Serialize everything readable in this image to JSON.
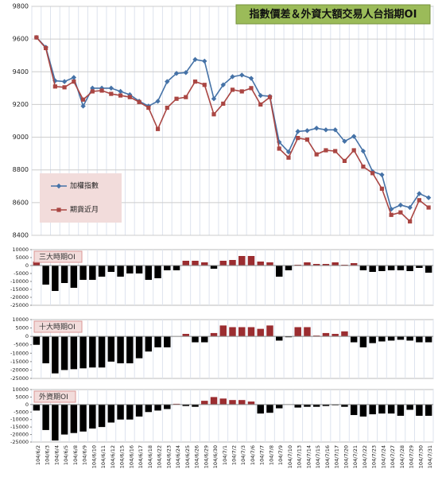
{
  "chart_data": [
    {
      "type": "line",
      "title": "指數價差＆外資大額交易人台指期OI",
      "ylim": [
        8400,
        9800
      ],
      "yticks": [
        8400,
        8600,
        8800,
        9000,
        9200,
        9400,
        9600,
        9800
      ],
      "grid": true,
      "legend": "lower left",
      "series": [
        {
          "name": "加權指數",
          "color": "#4572a7",
          "marker": "diamond",
          "values": [
            9610,
            9550,
            9345,
            9340,
            9365,
            9190,
            9300,
            9300,
            9300,
            9280,
            9260,
            9220,
            9190,
            9220,
            9340,
            9390,
            9395,
            9475,
            9465,
            9235,
            9320,
            9370,
            9380,
            9360,
            9255,
            9250,
            8970,
            8910,
            9035,
            9040,
            9055,
            9045,
            9045,
            8975,
            9005,
            8915,
            8790,
            8770,
            8560,
            8585,
            8570,
            8655,
            8630
          ]
        },
        {
          "name": "期貨近月",
          "color": "#aa4643",
          "marker": "square",
          "values": [
            9610,
            9545,
            9310,
            9305,
            9340,
            9230,
            9280,
            9285,
            9265,
            9255,
            9245,
            9215,
            9180,
            9050,
            9180,
            9235,
            9245,
            9340,
            9320,
            9140,
            9205,
            9290,
            9280,
            9300,
            9200,
            9245,
            8930,
            8875,
            8995,
            8985,
            8895,
            8920,
            8915,
            8855,
            8920,
            8820,
            8780,
            8685,
            8525,
            8540,
            8485,
            8615,
            8570
          ]
        }
      ]
    },
    {
      "type": "bar",
      "title": "三大時期OI",
      "ylim": [
        -25000,
        10000
      ],
      "yticks": [
        10000,
        5000,
        0,
        -5000,
        -10000,
        -15000,
        -20000,
        -25000
      ],
      "color": "#9b2d30",
      "negative_color": "#000000",
      "values": [
        2500,
        -12000,
        -16000,
        -11000,
        -14000,
        -9000,
        -9000,
        -7000,
        -4000,
        -7000,
        -5000,
        -5000,
        -9000,
        -8000,
        -3000,
        -3000,
        3000,
        3000,
        2000,
        -2000,
        3000,
        3500,
        6000,
        6000,
        2500,
        2000,
        -7000,
        -3000,
        500,
        2000,
        1000,
        1000,
        2000,
        500,
        1500,
        -3000,
        -4000,
        -3500,
        -3000,
        -3000,
        -3500,
        -1500,
        -4500
      ]
    },
    {
      "type": "bar",
      "title": "十大時期OI",
      "ylim": [
        -25000,
        10000
      ],
      "yticks": [
        10000,
        5000,
        0,
        -5000,
        -10000,
        -15000,
        -20000,
        -25000
      ],
      "color": "#9b2d30",
      "negative_color": "#000000",
      "values": [
        -5000,
        -16000,
        -22000,
        -20000,
        -19500,
        -19000,
        -18500,
        -18500,
        -15000,
        -16000,
        -16000,
        -13000,
        -9000,
        -6500,
        -6500,
        0,
        1500,
        -3500,
        -3500,
        2000,
        6500,
        5500,
        5500,
        5500,
        4500,
        6500,
        -2500,
        -500,
        5500,
        5500,
        500,
        2000,
        1500,
        3000,
        -3500,
        -6500,
        -4000,
        -3000,
        -2500,
        -2000,
        -2500,
        -3500,
        -3500
      ]
    },
    {
      "type": "bar",
      "title": "外資期OI",
      "ylim": [
        -25000,
        10000
      ],
      "yticks": [
        10000,
        5000,
        0,
        -5000,
        -10000,
        -15000,
        -20000,
        -25000
      ],
      "color": "#9b2d30",
      "negative_color": "#000000",
      "categories": [
        "104/6/2",
        "104/6/3",
        "104/6/4",
        "104/6/5",
        "104/6/8",
        "104/6/9",
        "104/6/10",
        "104/6/11",
        "104/6/12",
        "104/6/15",
        "104/6/16",
        "104/6/17",
        "104/6/18",
        "104/6/22",
        "104/6/23",
        "104/6/24",
        "104/6/25",
        "104/6/26",
        "104/6/29",
        "104/6/30",
        "104/7/1",
        "104/7/2",
        "104/7/3",
        "104/7/6",
        "104/7/7",
        "104/7/8",
        "104/7/9",
        "104/7/10",
        "104/7/13",
        "104/7/14",
        "104/7/15",
        "104/7/16",
        "104/7/17",
        "104/7/20",
        "104/7/21",
        "104/7/22",
        "104/7/23",
        "104/7/24",
        "104/7/27",
        "104/7/28",
        "104/7/29",
        "104/7/30",
        "104/7/31"
      ],
      "values": [
        -4000,
        -17000,
        -24000,
        -20000,
        -19000,
        -18000,
        -16000,
        -15000,
        -12000,
        -10000,
        -10000,
        -8000,
        -5000,
        -4000,
        -3000,
        500,
        -1000,
        -1500,
        2500,
        5000,
        4000,
        3000,
        3000,
        2000,
        -6000,
        -5500,
        -2500,
        0,
        -2000,
        -1500,
        -1500,
        -1000,
        -500,
        -1500,
        -7000,
        -8000,
        -6500,
        -6000,
        -6000,
        -7500,
        -3500,
        -7500,
        -7500
      ]
    }
  ]
}
